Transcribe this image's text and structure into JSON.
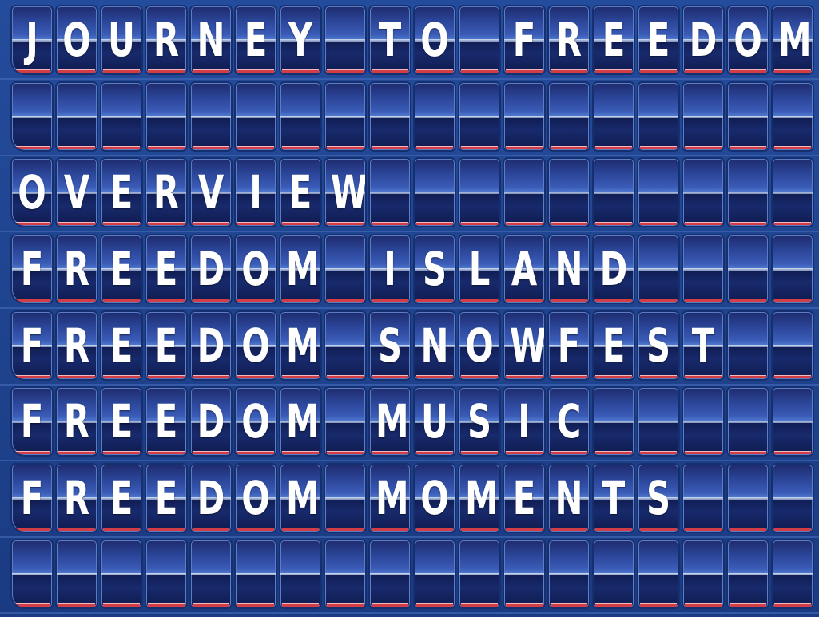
{
  "board": {
    "rows": [
      {
        "text": "JOURNEY TO FREEDOM",
        "cells": [
          "J",
          "O",
          "U",
          "R",
          "N",
          "E",
          "Y",
          "",
          "T",
          "O",
          "",
          "F",
          "R",
          "E",
          "E",
          "D",
          "O",
          "M"
        ]
      },
      {
        "text": "",
        "cells": [
          "",
          "",
          "",
          "",
          "",
          "",
          "",
          "",
          "",
          "",
          "",
          "",
          "",
          "",
          "",
          "",
          "",
          ""
        ]
      },
      {
        "text": "OVERVIEW",
        "cells": [
          "O",
          "V",
          "E",
          "R",
          "V",
          "I",
          "E",
          "W",
          "",
          "",
          "",
          "",
          "",
          "",
          "",
          "",
          "",
          ""
        ]
      },
      {
        "text": "FREEDOM ISLAND",
        "cells": [
          "F",
          "R",
          "E",
          "E",
          "D",
          "O",
          "M",
          "",
          "I",
          "S",
          "L",
          "A",
          "N",
          "D",
          "",
          "",
          "",
          ""
        ]
      },
      {
        "text": "FREEDOM SNOWFEST",
        "cells": [
          "F",
          "R",
          "E",
          "E",
          "D",
          "O",
          "M",
          "",
          "S",
          "N",
          "O",
          "W",
          "F",
          "E",
          "S",
          "T",
          "",
          ""
        ]
      },
      {
        "text": "FREEDOM MUSIC",
        "cells": [
          "F",
          "R",
          "E",
          "E",
          "D",
          "O",
          "M",
          "",
          "M",
          "U",
          "S",
          "I",
          "C",
          "",
          "",
          "",
          "",
          ""
        ]
      },
      {
        "text": "FREEDOM MOMENTS",
        "cells": [
          "F",
          "R",
          "E",
          "E",
          "D",
          "O",
          "M",
          "",
          "M",
          "O",
          "M",
          "E",
          "N",
          "T",
          "S",
          "",
          "",
          ""
        ]
      },
      {
        "text": "",
        "cells": [
          "",
          "",
          "",
          "",
          "",
          "",
          "",
          "",
          "",
          "",
          "",
          "",
          "",
          "",
          "",
          "",
          "",
          ""
        ]
      }
    ]
  },
  "colors": {
    "board": "#1c3f88",
    "tile_top": "#2b4598",
    "tile_bottom": "#0f1b4f",
    "letter": "#ffffff",
    "accent_strip": "#d23d46"
  }
}
